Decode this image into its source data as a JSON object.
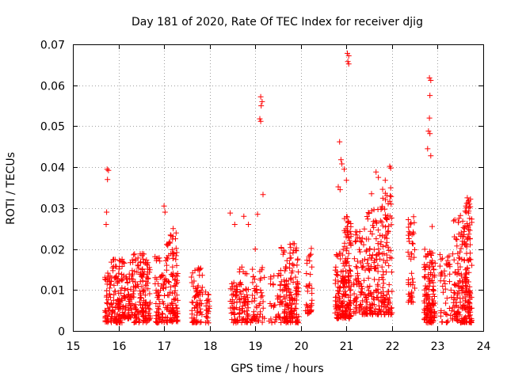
{
  "chart_data": {
    "type": "scatter",
    "title": "Day 181 of 2020, Rate Of TEC Index for receiver djig",
    "xlabel": "GPS time / hours",
    "ylabel": "ROTI / TECUs",
    "xlim": [
      15,
      24
    ],
    "ylim": [
      0,
      0.07
    ],
    "x_ticks": [
      "15",
      "16",
      "17",
      "18",
      "19",
      "20",
      "21",
      "22",
      "23",
      "24"
    ],
    "y_ticks": [
      "0",
      "0.01",
      "0.02",
      "0.03",
      "0.04",
      "0.05",
      "0.06",
      "0.07"
    ],
    "grid": true,
    "marker": "+",
    "color": "#ff0000",
    "clusters": [
      {
        "x": [
          15.7,
          15.82
        ],
        "y": [
          0.002,
          0.015
        ],
        "n": 40
      },
      {
        "x": [
          15.82,
          16.1
        ],
        "y": [
          0.002,
          0.018
        ],
        "n": 110
      },
      {
        "x": [
          16.1,
          16.3
        ],
        "y": [
          0.003,
          0.017
        ],
        "n": 60
      },
      {
        "x": [
          16.3,
          16.7
        ],
        "y": [
          0.002,
          0.019
        ],
        "n": 150
      },
      {
        "x": [
          16.8,
          17.05
        ],
        "y": [
          0.002,
          0.019
        ],
        "n": 70
      },
      {
        "x": [
          17.05,
          17.3
        ],
        "y": [
          0.002,
          0.024
        ],
        "n": 110
      },
      {
        "x": [
          17.6,
          17.85
        ],
        "y": [
          0.002,
          0.016
        ],
        "n": 70
      },
      {
        "x": [
          17.9,
          18.0
        ],
        "y": [
          0.002,
          0.011
        ],
        "n": 22
      },
      {
        "x": [
          18.45,
          18.62
        ],
        "y": [
          0.002,
          0.012
        ],
        "n": 45
      },
      {
        "x": [
          18.65,
          18.85
        ],
        "y": [
          0.002,
          0.016
        ],
        "n": 60
      },
      {
        "x": [
          18.9,
          19.2
        ],
        "y": [
          0.002,
          0.016
        ],
        "n": 55
      },
      {
        "x": [
          19.3,
          19.55
        ],
        "y": [
          0.002,
          0.014
        ],
        "n": 30
      },
      {
        "x": [
          19.55,
          19.75
        ],
        "y": [
          0.002,
          0.021
        ],
        "n": 70
      },
      {
        "x": [
          19.75,
          19.95
        ],
        "y": [
          0.002,
          0.022
        ],
        "n": 90
      },
      {
        "x": [
          20.1,
          20.25
        ],
        "y": [
          0.004,
          0.021
        ],
        "n": 35
      },
      {
        "x": [
          20.75,
          20.95
        ],
        "y": [
          0.003,
          0.02
        ],
        "n": 90
      },
      {
        "x": [
          20.95,
          21.1
        ],
        "y": [
          0.003,
          0.028
        ],
        "n": 110
      },
      {
        "x": [
          21.15,
          21.45
        ],
        "y": [
          0.004,
          0.025
        ],
        "n": 90
      },
      {
        "x": [
          21.45,
          21.75
        ],
        "y": [
          0.004,
          0.03
        ],
        "n": 110
      },
      {
        "x": [
          21.75,
          22.0
        ],
        "y": [
          0.004,
          0.035
        ],
        "n": 110
      },
      {
        "x": [
          22.35,
          22.5
        ],
        "y": [
          0.007,
          0.028
        ],
        "n": 45
      },
      {
        "x": [
          22.7,
          22.95
        ],
        "y": [
          0.002,
          0.02
        ],
        "n": 140
      },
      {
        "x": [
          23.05,
          23.35
        ],
        "y": [
          0.002,
          0.02
        ],
        "n": 50
      },
      {
        "x": [
          23.35,
          23.6
        ],
        "y": [
          0.002,
          0.028
        ],
        "n": 110
      },
      {
        "x": [
          23.6,
          23.75
        ],
        "y": [
          0.002,
          0.032
        ],
        "n": 110
      }
    ],
    "outliers": [
      [
        15.75,
        0.0395
      ],
      [
        15.78,
        0.0392
      ],
      [
        15.76,
        0.037
      ],
      [
        15.74,
        0.029
      ],
      [
        15.73,
        0.026
      ],
      [
        17.0,
        0.0305
      ],
      [
        17.02,
        0.029
      ],
      [
        17.2,
        0.025
      ],
      [
        17.25,
        0.0225
      ],
      [
        18.45,
        0.0288
      ],
      [
        18.55,
        0.026
      ],
      [
        18.75,
        0.028
      ],
      [
        18.85,
        0.026
      ],
      [
        19.12,
        0.0572
      ],
      [
        19.15,
        0.056
      ],
      [
        19.13,
        0.055
      ],
      [
        19.1,
        0.0518
      ],
      [
        19.12,
        0.0512
      ],
      [
        19.17,
        0.0333
      ],
      [
        19.05,
        0.0285
      ],
      [
        19.0,
        0.02
      ],
      [
        20.85,
        0.0462
      ],
      [
        20.88,
        0.0418
      ],
      [
        20.9,
        0.0408
      ],
      [
        20.82,
        0.0352
      ],
      [
        20.86,
        0.0345
      ],
      [
        20.95,
        0.0395
      ],
      [
        21.0,
        0.0368
      ],
      [
        21.02,
        0.0678
      ],
      [
        21.05,
        0.0672
      ],
      [
        21.03,
        0.0658
      ],
      [
        21.05,
        0.0652
      ],
      [
        21.55,
        0.0335
      ],
      [
        21.65,
        0.0388
      ],
      [
        21.7,
        0.0375
      ],
      [
        21.95,
        0.0402
      ],
      [
        21.97,
        0.0398
      ],
      [
        21.85,
        0.0368
      ],
      [
        22.82,
        0.0618
      ],
      [
        22.85,
        0.0612
      ],
      [
        22.83,
        0.0575
      ],
      [
        22.82,
        0.052
      ],
      [
        22.8,
        0.0488
      ],
      [
        22.83,
        0.0482
      ],
      [
        22.78,
        0.0445
      ],
      [
        22.85,
        0.0428
      ],
      [
        22.88,
        0.0255
      ],
      [
        23.65,
        0.0325
      ],
      [
        23.68,
        0.0318
      ],
      [
        23.7,
        0.031
      ],
      [
        23.62,
        0.0305
      ],
      [
        23.72,
        0.0322
      ],
      [
        23.5,
        0.0282
      ],
      [
        23.55,
        0.0268
      ]
    ]
  }
}
